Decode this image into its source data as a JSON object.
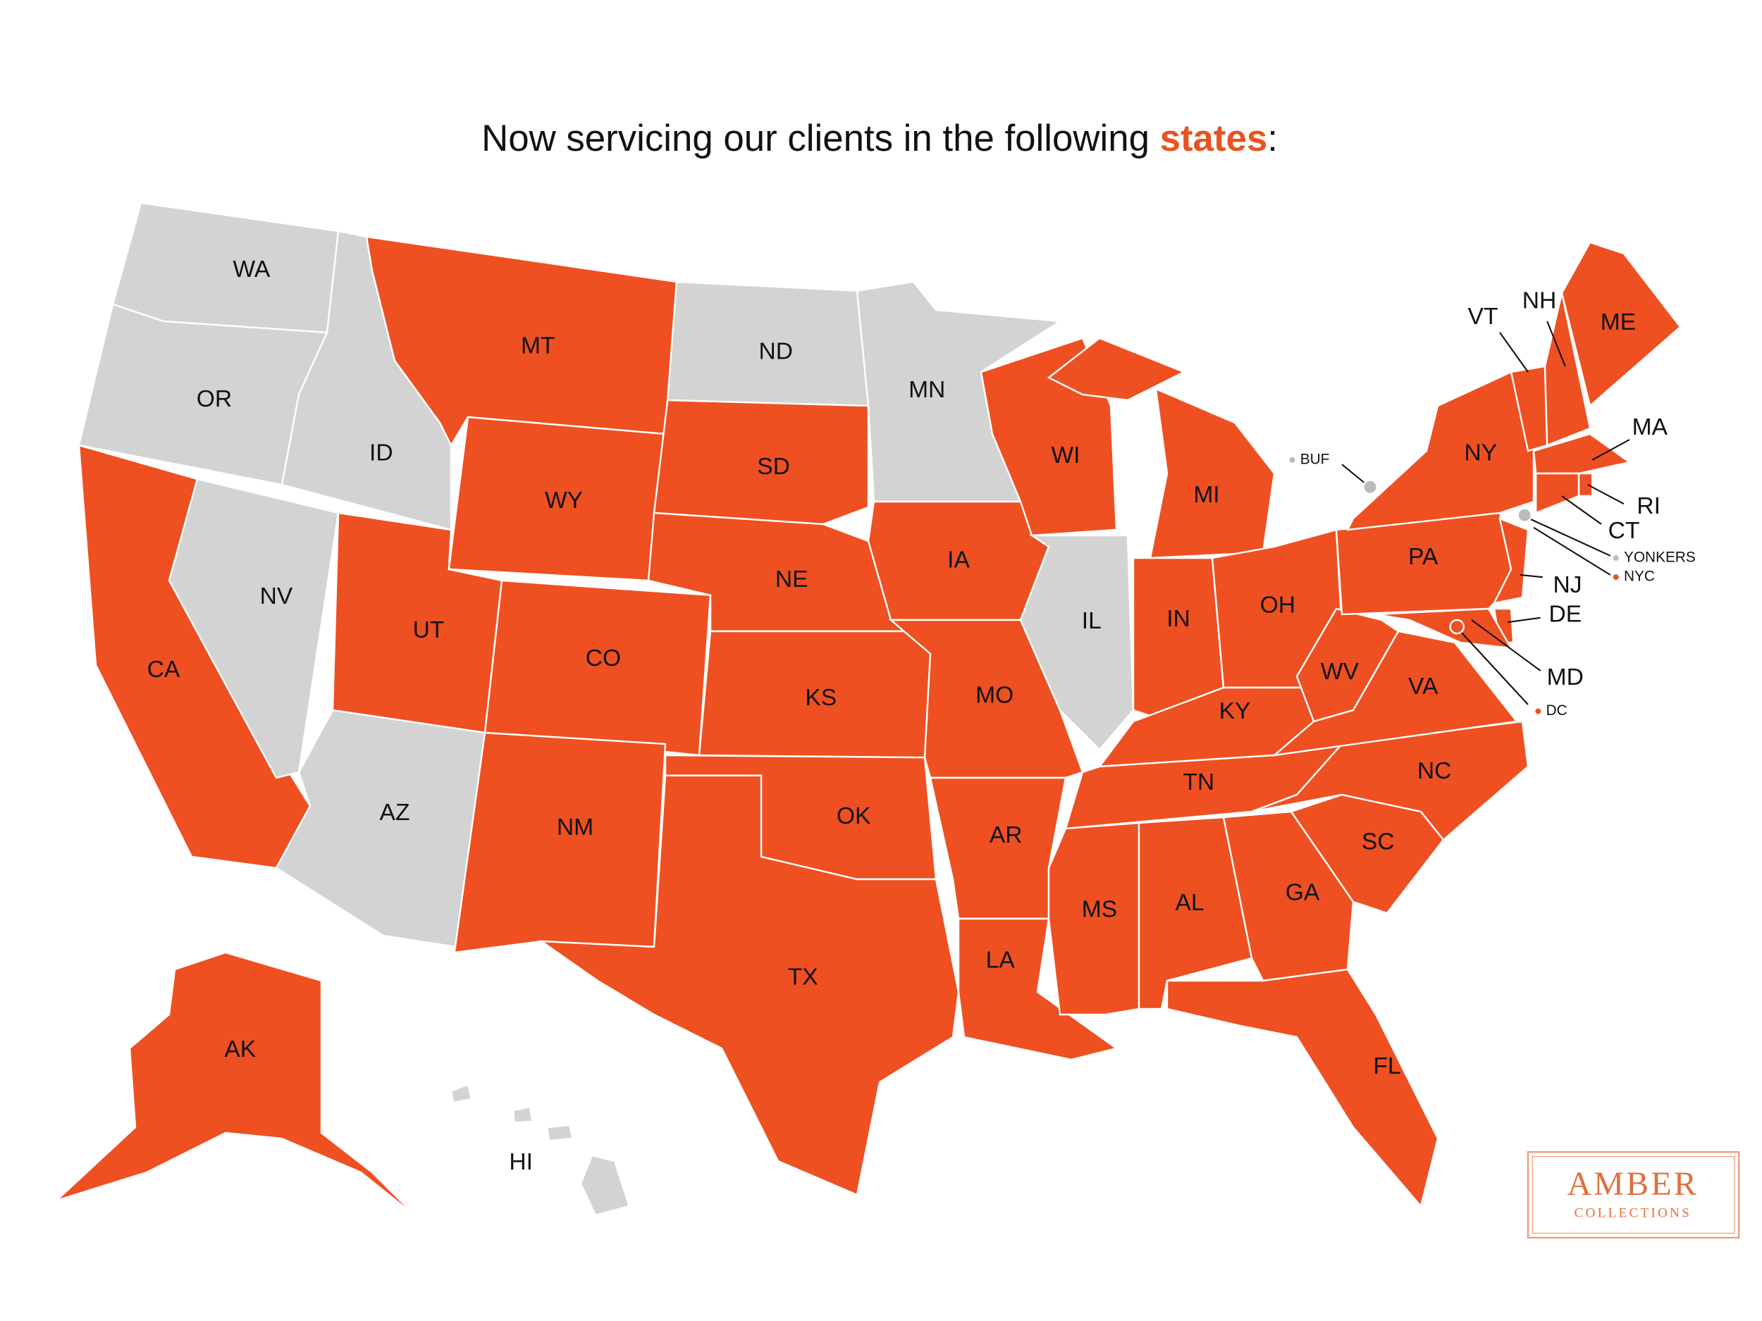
{
  "header": {
    "title": "Now servicing our clients in the following",
    "highlight": "states",
    "end": ":"
  },
  "states": [
    {
      "label": "WA",
      "serviced": false
    },
    {
      "label": "OR",
      "serviced": false
    },
    {
      "label": "CA",
      "serviced": true
    },
    {
      "label": "NV",
      "serviced": false
    },
    {
      "label": "ID",
      "serviced": false
    },
    {
      "label": "MT",
      "serviced": true
    },
    {
      "label": "WY",
      "serviced": true
    },
    {
      "label": "UT",
      "serviced": true
    },
    {
      "label": "AZ",
      "serviced": false
    },
    {
      "label": "CO",
      "serviced": true
    },
    {
      "label": "NM",
      "serviced": true
    },
    {
      "label": "ND",
      "serviced": false
    },
    {
      "label": "SD",
      "serviced": true
    },
    {
      "label": "NE",
      "serviced": true
    },
    {
      "label": "KS",
      "serviced": true
    },
    {
      "label": "OK",
      "serviced": true
    },
    {
      "label": "TX",
      "serviced": true
    },
    {
      "label": "MN",
      "serviced": false
    },
    {
      "label": "IA",
      "serviced": true
    },
    {
      "label": "MO",
      "serviced": true
    },
    {
      "label": "AR",
      "serviced": true
    },
    {
      "label": "LA",
      "serviced": true
    },
    {
      "label": "WI",
      "serviced": true
    },
    {
      "label": "IL",
      "serviced": false
    },
    {
      "label": "MI",
      "serviced": true
    },
    {
      "label": "IN",
      "serviced": true
    },
    {
      "label": "OH",
      "serviced": true
    },
    {
      "label": "KY",
      "serviced": true
    },
    {
      "label": "TN",
      "serviced": true
    },
    {
      "label": "MS",
      "serviced": true
    },
    {
      "label": "AL",
      "serviced": true
    },
    {
      "label": "GA",
      "serviced": true
    },
    {
      "label": "FL",
      "serviced": true
    },
    {
      "label": "SC",
      "serviced": true
    },
    {
      "label": "NC",
      "serviced": true
    },
    {
      "label": "WV",
      "serviced": true
    },
    {
      "label": "VA",
      "serviced": true
    },
    {
      "label": "PA",
      "serviced": true
    },
    {
      "label": "NY",
      "serviced": true
    },
    {
      "label": "VT",
      "serviced": true
    },
    {
      "label": "NH",
      "serviced": true
    },
    {
      "label": "ME",
      "serviced": true
    },
    {
      "label": "MA",
      "serviced": true
    },
    {
      "label": "RI",
      "serviced": true
    },
    {
      "label": "CT",
      "serviced": true
    },
    {
      "label": "NJ",
      "serviced": true
    },
    {
      "label": "DE",
      "serviced": true
    },
    {
      "label": "MD",
      "serviced": true
    },
    {
      "label": "AK",
      "serviced": true
    },
    {
      "label": "HI",
      "serviced": false
    }
  ],
  "cities": [
    {
      "label": "BUF",
      "serviced": false
    },
    {
      "label": "YONKERS",
      "serviced": false
    },
    {
      "label": "NYC",
      "serviced": true
    },
    {
      "label": "DC",
      "serviced": true
    }
  ],
  "logo": {
    "name": "AMBER",
    "tagline": "COLLECTIONS"
  }
}
